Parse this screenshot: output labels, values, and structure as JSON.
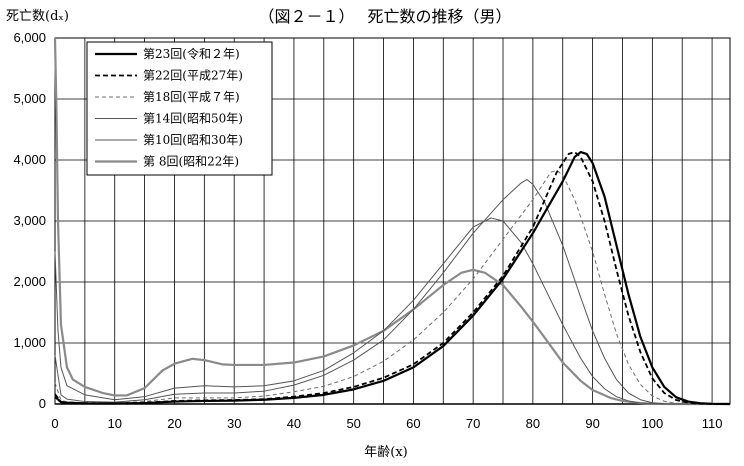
{
  "chart_data": {
    "type": "line",
    "title": "（図２－１）　 死亡数の推移（男）",
    "ylabel": "死亡数(dₓ)",
    "xlabel": "年齢(x)",
    "xlim": [
      0,
      113
    ],
    "ylim": [
      0,
      6000
    ],
    "x_ticks": [
      0,
      10,
      20,
      30,
      40,
      50,
      60,
      70,
      80,
      90,
      100,
      110
    ],
    "x_tick_labels": [
      "0",
      "10",
      "20",
      "30",
      "40",
      "50",
      "60",
      "70",
      "80",
      "90",
      "100",
      "110"
    ],
    "y_ticks": [
      0,
      1000,
      2000,
      3000,
      4000,
      5000,
      6000
    ],
    "y_tick_labels": [
      "0",
      "1,000",
      "2,000",
      "3,000",
      "4,000",
      "5,000",
      "6,000"
    ],
    "grid": "vertical every 5 years, horizontal every 1,000",
    "legend_position": "top-left",
    "series": [
      {
        "name": "第23回(令和２年)",
        "color": "#000000",
        "style": "solid-thick",
        "points": [
          [
            0,
            120
          ],
          [
            1,
            30
          ],
          [
            2,
            20
          ],
          [
            5,
            10
          ],
          [
            10,
            8
          ],
          [
            15,
            15
          ],
          [
            20,
            40
          ],
          [
            25,
            50
          ],
          [
            30,
            55
          ],
          [
            35,
            70
          ],
          [
            40,
            100
          ],
          [
            45,
            150
          ],
          [
            50,
            240
          ],
          [
            55,
            380
          ],
          [
            60,
            600
          ],
          [
            65,
            950
          ],
          [
            70,
            1450
          ],
          [
            75,
            2050
          ],
          [
            80,
            2800
          ],
          [
            85,
            3650
          ],
          [
            87,
            4050
          ],
          [
            88,
            4130
          ],
          [
            89,
            4100
          ],
          [
            90,
            3950
          ],
          [
            92,
            3400
          ],
          [
            94,
            2600
          ],
          [
            96,
            1800
          ],
          [
            98,
            1100
          ],
          [
            100,
            600
          ],
          [
            102,
            280
          ],
          [
            104,
            110
          ],
          [
            106,
            40
          ],
          [
            108,
            12
          ],
          [
            110,
            3
          ],
          [
            113,
            0
          ]
        ]
      },
      {
        "name": "第22回(平成27年)",
        "color": "#000000",
        "style": "dashed",
        "points": [
          [
            0,
            160
          ],
          [
            1,
            35
          ],
          [
            2,
            22
          ],
          [
            5,
            12
          ],
          [
            10,
            10
          ],
          [
            15,
            20
          ],
          [
            20,
            50
          ],
          [
            25,
            60
          ],
          [
            30,
            65
          ],
          [
            35,
            80
          ],
          [
            40,
            120
          ],
          [
            45,
            180
          ],
          [
            50,
            280
          ],
          [
            55,
            430
          ],
          [
            60,
            650
          ],
          [
            65,
            1000
          ],
          [
            70,
            1500
          ],
          [
            75,
            2100
          ],
          [
            80,
            2900
          ],
          [
            84,
            3800
          ],
          [
            86,
            4100
          ],
          [
            87,
            4130
          ],
          [
            88,
            4050
          ],
          [
            90,
            3650
          ],
          [
            92,
            3000
          ],
          [
            94,
            2200
          ],
          [
            96,
            1450
          ],
          [
            98,
            850
          ],
          [
            100,
            420
          ],
          [
            102,
            180
          ],
          [
            104,
            65
          ],
          [
            106,
            20
          ],
          [
            108,
            5
          ],
          [
            113,
            0
          ]
        ]
      },
      {
        "name": "第18回(平成７年)",
        "color": "#6e6e6e",
        "style": "dashed-thin",
        "points": [
          [
            0,
            350
          ],
          [
            1,
            60
          ],
          [
            2,
            35
          ],
          [
            5,
            20
          ],
          [
            10,
            18
          ],
          [
            15,
            40
          ],
          [
            20,
            100
          ],
          [
            25,
            100
          ],
          [
            30,
            100
          ],
          [
            35,
            130
          ],
          [
            40,
            200
          ],
          [
            45,
            290
          ],
          [
            50,
            450
          ],
          [
            55,
            700
          ],
          [
            60,
            1050
          ],
          [
            65,
            1500
          ],
          [
            70,
            2050
          ],
          [
            75,
            2700
          ],
          [
            80,
            3350
          ],
          [
            83,
            3800
          ],
          [
            84,
            3830
          ],
          [
            85,
            3750
          ],
          [
            87,
            3350
          ],
          [
            90,
            2500
          ],
          [
            92,
            1800
          ],
          [
            94,
            1150
          ],
          [
            96,
            650
          ],
          [
            98,
            320
          ],
          [
            100,
            130
          ],
          [
            102,
            45
          ],
          [
            104,
            12
          ],
          [
            106,
            3
          ],
          [
            110,
            0
          ],
          [
            113,
            0
          ]
        ]
      },
      {
        "name": "第14回(昭和50年)",
        "color": "#555555",
        "style": "solid-thin",
        "points": [
          [
            0,
            800
          ],
          [
            1,
            150
          ],
          [
            2,
            80
          ],
          [
            5,
            40
          ],
          [
            10,
            30
          ],
          [
            15,
            70
          ],
          [
            20,
            160
          ],
          [
            25,
            180
          ],
          [
            30,
            180
          ],
          [
            35,
            210
          ],
          [
            40,
            310
          ],
          [
            45,
            470
          ],
          [
            50,
            720
          ],
          [
            55,
            1050
          ],
          [
            60,
            1550
          ],
          [
            65,
            2150
          ],
          [
            70,
            2800
          ],
          [
            75,
            3350
          ],
          [
            78,
            3620
          ],
          [
            79,
            3680
          ],
          [
            80,
            3600
          ],
          [
            82,
            3300
          ],
          [
            85,
            2600
          ],
          [
            88,
            1750
          ],
          [
            90,
            1200
          ],
          [
            92,
            750
          ],
          [
            94,
            400
          ],
          [
            96,
            180
          ],
          [
            98,
            70
          ],
          [
            100,
            20
          ],
          [
            102,
            5
          ],
          [
            105,
            0
          ],
          [
            113,
            0
          ]
        ]
      },
      {
        "name": "第10回(昭和30年)",
        "color": "#555555",
        "style": "solid-thin",
        "points": [
          [
            0,
            2500
          ],
          [
            0.5,
            1200
          ],
          [
            1,
            600
          ],
          [
            2,
            300
          ],
          [
            5,
            150
          ],
          [
            10,
            70
          ],
          [
            15,
            120
          ],
          [
            20,
            260
          ],
          [
            25,
            300
          ],
          [
            30,
            280
          ],
          [
            35,
            300
          ],
          [
            40,
            380
          ],
          [
            45,
            550
          ],
          [
            50,
            840
          ],
          [
            55,
            1200
          ],
          [
            60,
            1700
          ],
          [
            65,
            2300
          ],
          [
            70,
            2900
          ],
          [
            73,
            3050
          ],
          [
            75,
            3000
          ],
          [
            78,
            2650
          ],
          [
            80,
            2300
          ],
          [
            83,
            1700
          ],
          [
            85,
            1300
          ],
          [
            88,
            750
          ],
          [
            90,
            450
          ],
          [
            92,
            250
          ],
          [
            94,
            120
          ],
          [
            96,
            50
          ],
          [
            98,
            15
          ],
          [
            100,
            5
          ],
          [
            102,
            0
          ],
          [
            113,
            0
          ]
        ]
      },
      {
        "name": "第 8回(昭和22年)",
        "color": "#8a8a8a",
        "style": "solid-thick",
        "points": [
          [
            0,
            6000
          ],
          [
            0.25,
            4800
          ],
          [
            0.5,
            3000
          ],
          [
            1,
            1300
          ],
          [
            2,
            600
          ],
          [
            3,
            400
          ],
          [
            5,
            280
          ],
          [
            8,
            180
          ],
          [
            10,
            140
          ],
          [
            12,
            140
          ],
          [
            15,
            260
          ],
          [
            18,
            550
          ],
          [
            20,
            660
          ],
          [
            23,
            740
          ],
          [
            25,
            720
          ],
          [
            28,
            650
          ],
          [
            30,
            640
          ],
          [
            35,
            640
          ],
          [
            40,
            680
          ],
          [
            45,
            780
          ],
          [
            50,
            960
          ],
          [
            55,
            1200
          ],
          [
            60,
            1550
          ],
          [
            65,
            1950
          ],
          [
            68,
            2150
          ],
          [
            70,
            2200
          ],
          [
            72,
            2150
          ],
          [
            75,
            1950
          ],
          [
            78,
            1600
          ],
          [
            80,
            1350
          ],
          [
            83,
            950
          ],
          [
            85,
            680
          ],
          [
            88,
            380
          ],
          [
            90,
            230
          ],
          [
            93,
            100
          ],
          [
            95,
            50
          ],
          [
            98,
            15
          ],
          [
            100,
            5
          ],
          [
            103,
            0
          ],
          [
            113,
            0
          ]
        ]
      }
    ]
  }
}
